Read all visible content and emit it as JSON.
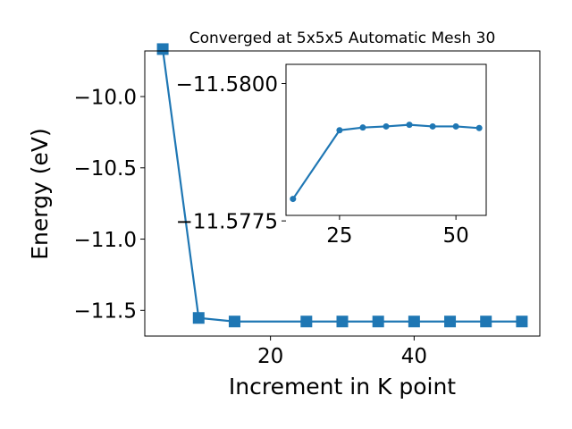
{
  "chart_data": [
    {
      "type": "line",
      "title": "Converged at 5x5x5 Automatic Mesh 30",
      "xlabel": "Increment in K point",
      "ylabel": "Energy (eV)",
      "xlim": [
        2.5,
        57.5
      ],
      "ylim": [
        -11.68,
        -9.68
      ],
      "xticks": [
        20,
        40
      ],
      "xtick_labels": [
        "20",
        "40"
      ],
      "yticks": [
        -11.5,
        -11.0,
        -10.5,
        -10.0
      ],
      "ytick_labels": [
        "−11.5",
        "−11.0",
        "−10.5",
        "−10.0"
      ],
      "marker": "square",
      "series": [
        {
          "x": [
            5,
            10,
            15,
            25,
            30,
            35,
            40,
            45,
            50,
            55
          ],
          "y": [
            -9.667,
            -11.553,
            -11.578,
            -11.578,
            -11.578,
            -11.578,
            -11.578,
            -11.578,
            -11.578,
            -11.578
          ]
        }
      ],
      "grid": false,
      "color": "#1f77b4"
    },
    {
      "type": "line",
      "title": "",
      "inset": true,
      "xlim": [
        13.5,
        56.5
      ],
      "ylim": [
        -11.5776,
        -11.58035
      ],
      "xticks": [
        25,
        50
      ],
      "xtick_labels": [
        "25",
        "50"
      ],
      "yticks": [
        -11.5775,
        -11.58
      ],
      "ytick_labels": [
        "−11.5775",
        "−11.5800"
      ],
      "marker": "circle",
      "series": [
        {
          "x": [
            15,
            25,
            30,
            35,
            40,
            45,
            50,
            55
          ],
          "y": [
            -11.5779,
            -11.57915,
            -11.5792,
            -11.57922,
            -11.57925,
            -11.57922,
            -11.57922,
            -11.57919
          ]
        }
      ],
      "grid": false,
      "color": "#1f77b4"
    }
  ]
}
